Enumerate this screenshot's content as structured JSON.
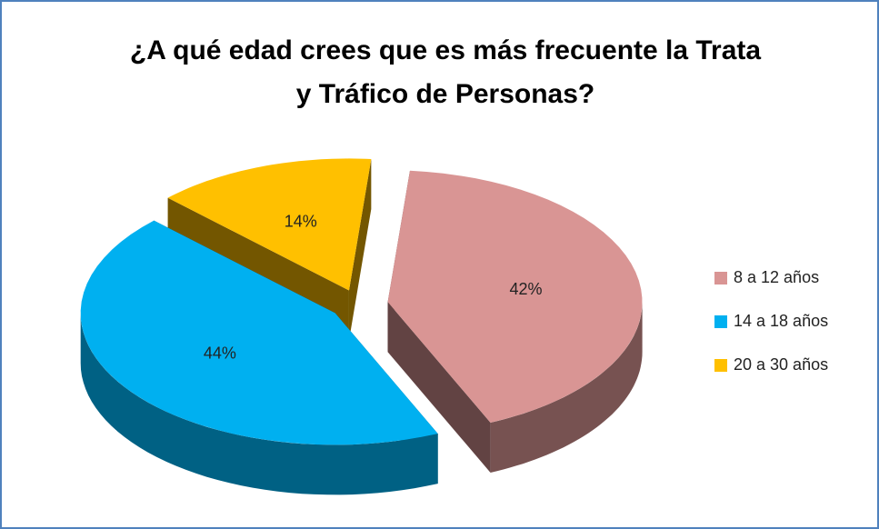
{
  "chart_data": {
    "type": "pie",
    "title": "¿A qué edad crees que es más frecuente la Trata\ny Tráfico de Personas?",
    "categories": [
      "8 a 12 años",
      "14 a 18 años",
      "20 a 30 años"
    ],
    "values": [
      42,
      44,
      14
    ],
    "value_labels": [
      "42%",
      "44%",
      "14%"
    ],
    "colors": [
      "#d99594",
      "#00b0f0",
      "#ffc000"
    ],
    "legend": "right"
  }
}
